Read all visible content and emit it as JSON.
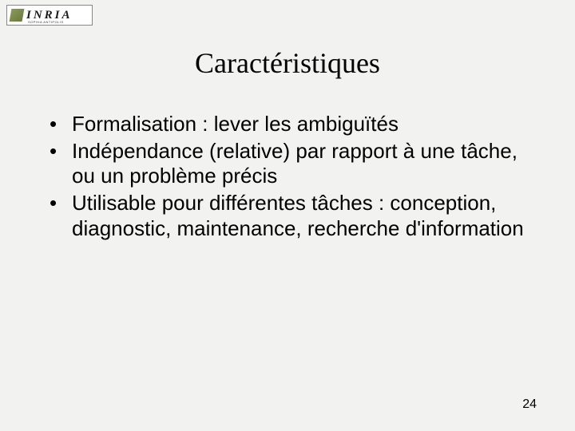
{
  "logo": {
    "text": "INRIA",
    "subtext": "SOPHIA ANTIPOLIS"
  },
  "title": "Caractéristiques",
  "bullets": [
    "Formalisation : lever les ambiguïtés",
    "Indépendance (relative) par rapport à une tâche, ou un problème précis",
    "Utilisable pour différentes tâches : conception, diagnostic, maintenance, recherche d'information"
  ],
  "page_number": "24",
  "style": {
    "background_color": "#f2f2f0",
    "text_color": "#000000",
    "title_font": "Times New Roman",
    "title_fontsize": 36,
    "body_font": "Arial",
    "body_fontsize": 26,
    "bullet_char": "•",
    "page_number_fontsize": 16
  }
}
